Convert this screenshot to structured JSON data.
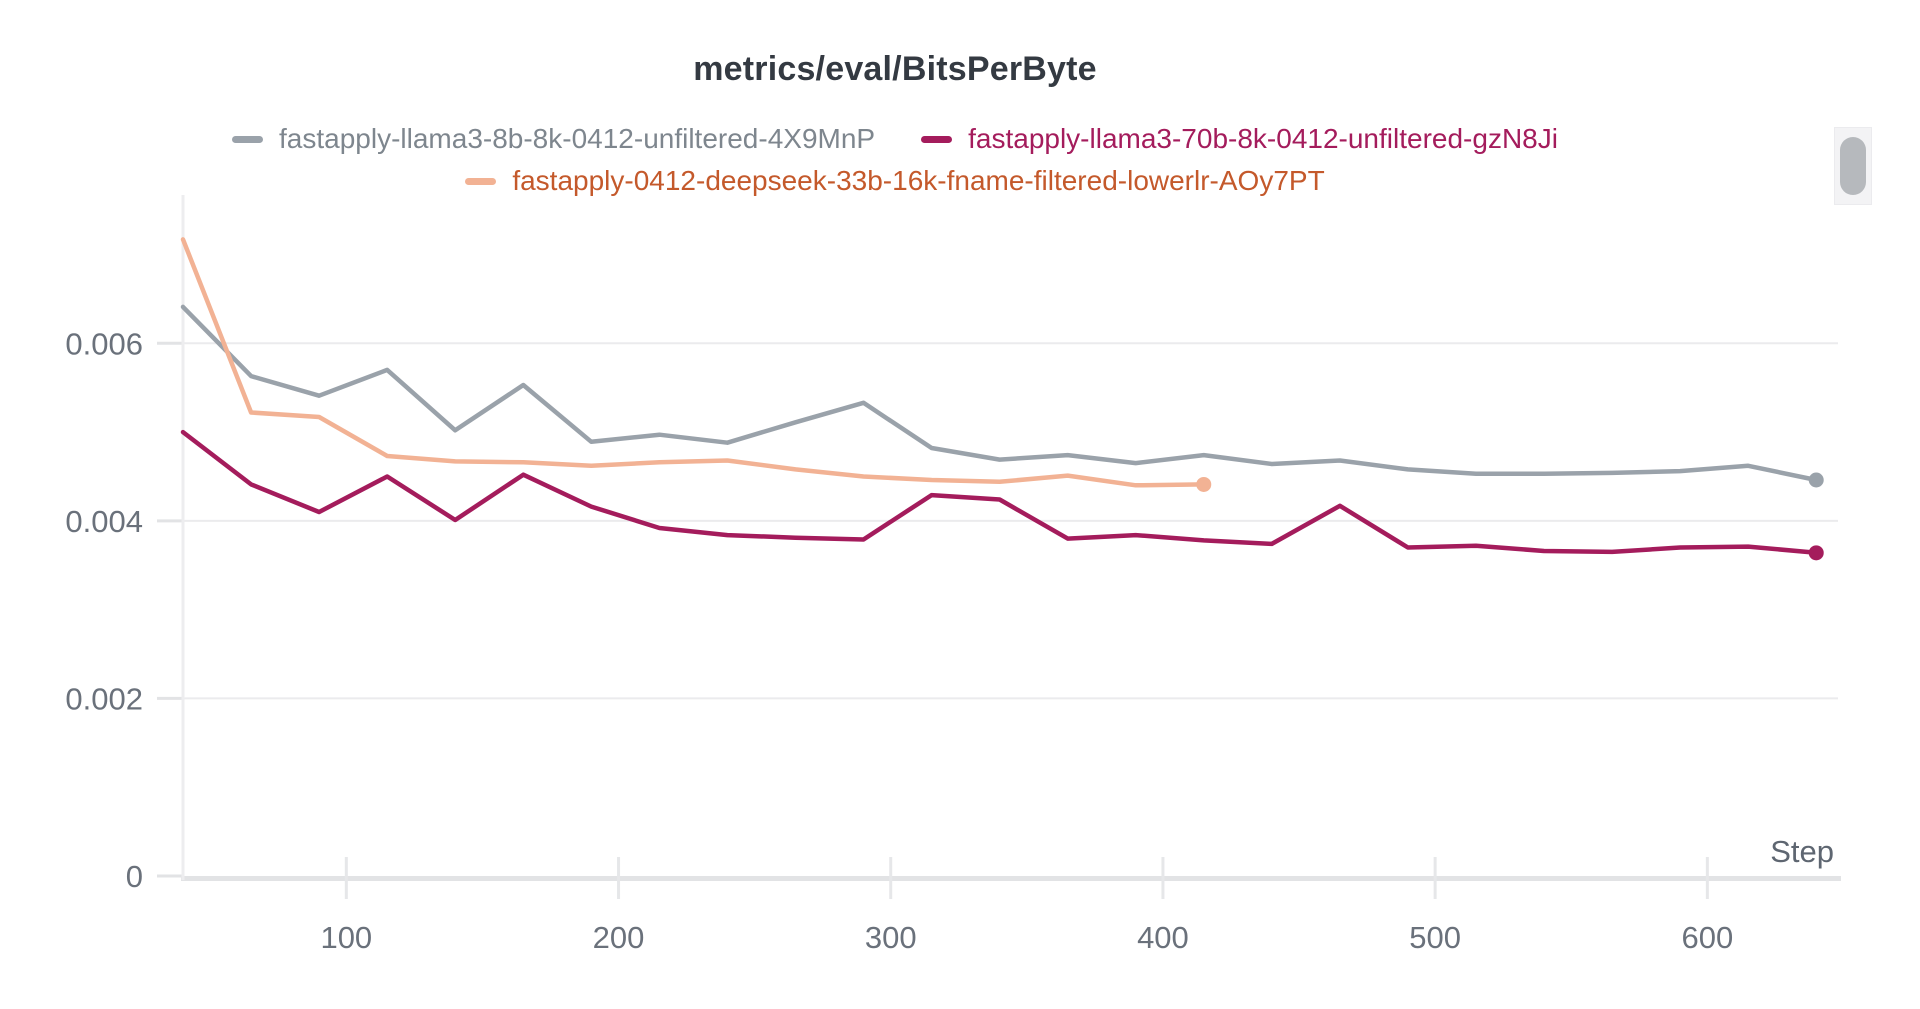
{
  "header": {
    "title": "metrics/eval/BitsPerByte"
  },
  "chart_data": {
    "type": "line",
    "title": "metrics/eval/BitsPerByte",
    "xlabel": "Step",
    "ylabel": "",
    "xlim": [
      40,
      648
    ],
    "ylim": [
      0,
      0.00767
    ],
    "x_ticks": [
      100,
      200,
      300,
      400,
      500,
      600
    ],
    "y_ticks": [
      0,
      0.002,
      0.004,
      0.006
    ],
    "y_tick_labels": [
      "0",
      "0.002",
      "0.004",
      "0.006"
    ],
    "grid": "horizontal",
    "legend_position": "top-center",
    "series": [
      {
        "name": "fastapply-llama3-8b-8k-0412-unfiltered-4X9MnP",
        "line_color": "#9aa2aa",
        "label_color": "#7e868e",
        "end_marker": true,
        "steps": [
          40,
          65,
          90,
          115,
          140,
          165,
          190,
          215,
          240,
          265,
          290,
          315,
          340,
          365,
          390,
          415,
          440,
          465,
          490,
          515,
          540,
          565,
          590,
          615,
          640
        ],
        "values": [
          0.00641,
          0.00563,
          0.00541,
          0.0057,
          0.00502,
          0.00553,
          0.00489,
          0.00497,
          0.00488,
          0.00511,
          0.00533,
          0.00482,
          0.00469,
          0.00474,
          0.00465,
          0.00474,
          0.00464,
          0.00468,
          0.00458,
          0.00453,
          0.00453,
          0.00454,
          0.00456,
          0.00462,
          0.00446
        ]
      },
      {
        "name": "fastapply-llama3-70b-8k-0412-unfiltered-gzN8Ji",
        "line_color": "#a41c5c",
        "label_color": "#a41c5c",
        "end_marker": true,
        "steps": [
          40,
          65,
          90,
          115,
          140,
          165,
          190,
          215,
          240,
          265,
          290,
          315,
          340,
          365,
          390,
          415,
          440,
          465,
          490,
          515,
          540,
          565,
          590,
          615,
          640
        ],
        "values": [
          0.005,
          0.00441,
          0.0041,
          0.0045,
          0.00401,
          0.00452,
          0.00416,
          0.00392,
          0.00384,
          0.00381,
          0.00379,
          0.00429,
          0.00424,
          0.0038,
          0.00384,
          0.00378,
          0.00374,
          0.00417,
          0.0037,
          0.00372,
          0.00366,
          0.00365,
          0.0037,
          0.00371,
          0.00364
        ]
      },
      {
        "name": "fastapply-0412-deepseek-33b-16k-fname-filtered-lowerlr-AOy7PT",
        "line_color": "#f2b294",
        "label_color": "#c4592b",
        "end_marker": true,
        "steps": [
          40,
          65,
          90,
          115,
          140,
          165,
          190,
          215,
          240,
          265,
          290,
          315,
          340,
          365,
          390,
          415
        ],
        "values": [
          0.00717,
          0.00522,
          0.00517,
          0.00473,
          0.00467,
          0.00466,
          0.00462,
          0.00466,
          0.00468,
          0.00458,
          0.0045,
          0.00446,
          0.00444,
          0.00451,
          0.0044,
          0.00441
        ]
      }
    ]
  }
}
